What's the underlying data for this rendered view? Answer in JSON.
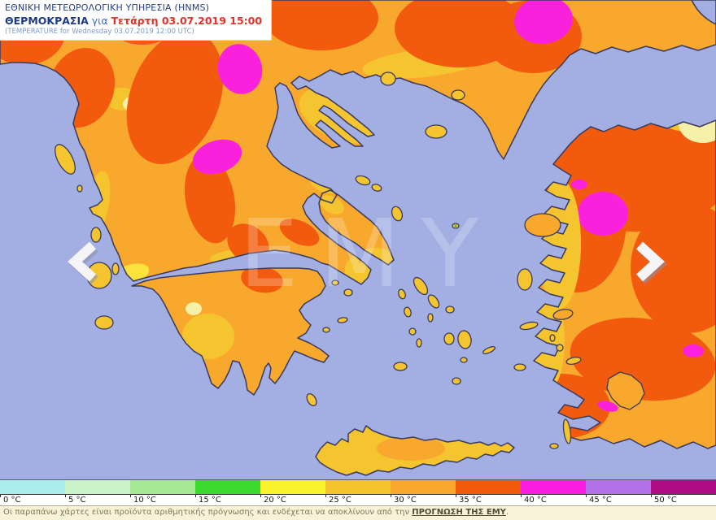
{
  "header": {
    "line1": "ΕΘΝΙΚΗ ΜΕΤΕΩΡΟΛΟΓΙΚΗ ΥΠΗΡΕΣΙΑ (HNMS)",
    "line2_label": "ΘΕΡΜΟΚΡΑΣΙΑ",
    "line2_mid": " για ",
    "line2_date": "Τετάρτη 03.07.2019 15:00",
    "line3": "(TEMPERATURE for Wednesday 03.07.2019 12:00 UTC)"
  },
  "map": {
    "watermark": "ΕΜΥ",
    "palette": {
      "sea": "#A3AEE3",
      "coast": "#3A3A5C",
      "orange": "#F8A82D",
      "gold": "#F5C52F",
      "paleyellow": "#F7F0A8",
      "yellow": "#FBE33B",
      "deep": "#F25B0E",
      "magenta": "#FA21DC",
      "green": "#6FBE3C",
      "arrow": "#F5F5F8",
      "arrow_shadow": "#8A90AD"
    }
  },
  "legend": {
    "unit": "°C",
    "stops": [
      {
        "label": "0 °C",
        "color": "#AAEEEE"
      },
      {
        "label": "5 °C",
        "color": "#C9F2C9"
      },
      {
        "label": "10 °C",
        "color": "#A6E893"
      },
      {
        "label": "15 °C",
        "color": "#3CD82B"
      },
      {
        "label": "20 °C",
        "color": "#FAF22C"
      },
      {
        "label": "25 °C",
        "color": "#F5C42C"
      },
      {
        "label": "30 °C",
        "color": "#F8A92B"
      },
      {
        "label": "35 °C",
        "color": "#F2590D"
      },
      {
        "label": "40 °C",
        "color": "#F81BE0"
      },
      {
        "label": "45 °C",
        "color": "#B271E8"
      },
      {
        "label": "50 °C",
        "color": "#AE0C87"
      }
    ]
  },
  "footer": {
    "text": "Οι παραπάνω χάρτες είναι προϊόντα αριθμητικής πρόγνωσης και ενδέχεται να αποκλίνουν από την ",
    "link": "ΠΡΟΓΝΩΣΗ ΤΗΣ ΕΜΥ",
    "suffix": "."
  }
}
